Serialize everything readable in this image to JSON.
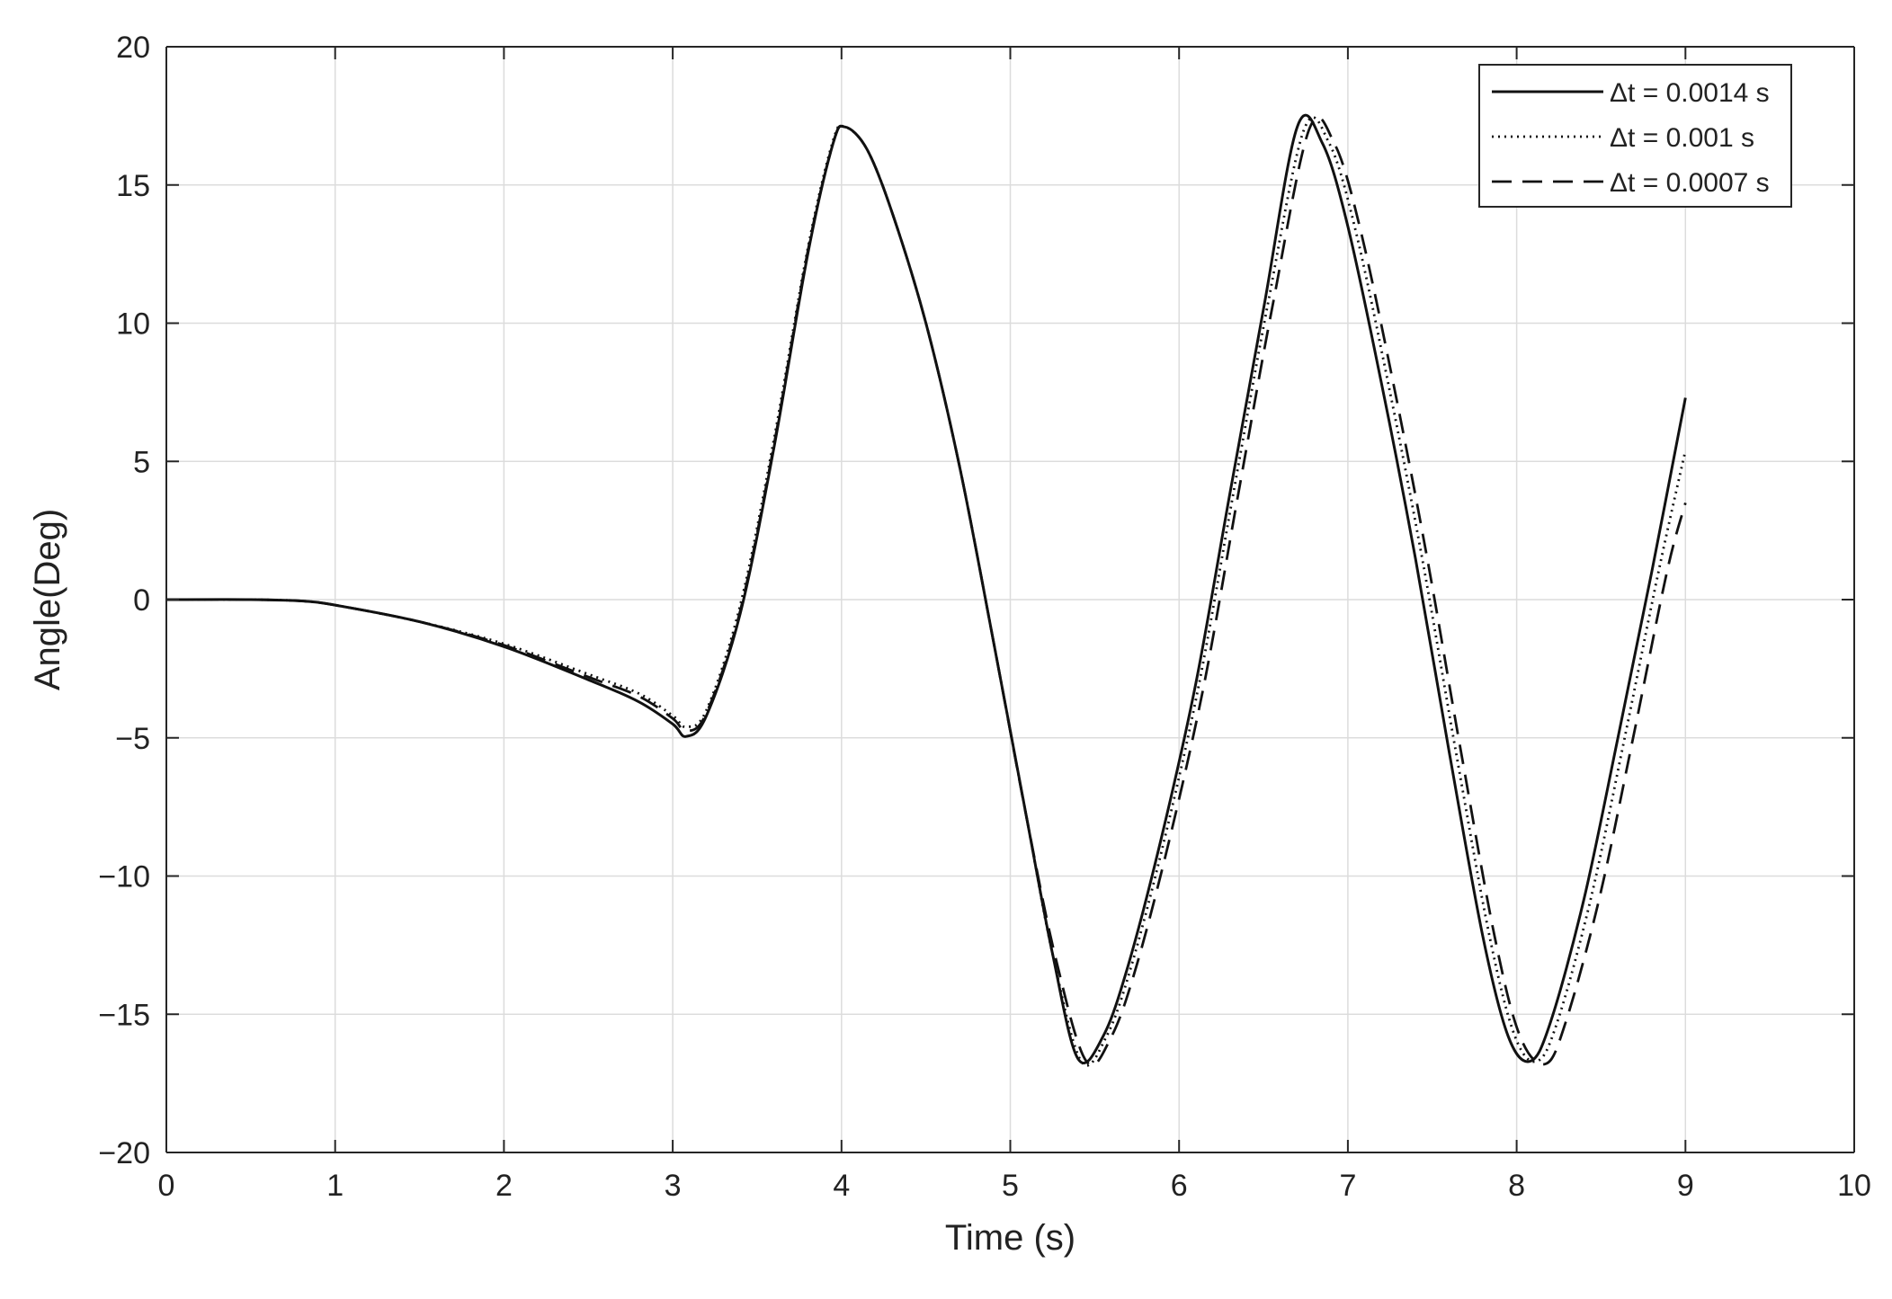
{
  "chart_data": {
    "type": "line",
    "title": "",
    "xlabel": "Time (s)",
    "ylabel": "Angle(Deg)",
    "xlim": [
      0,
      10
    ],
    "ylim": [
      -20,
      20
    ],
    "xticks": [
      0,
      1,
      2,
      3,
      4,
      5,
      6,
      7,
      8,
      9,
      10
    ],
    "yticks": [
      -20,
      -15,
      -10,
      -5,
      0,
      5,
      10,
      15,
      20
    ],
    "xtick_labels": [
      "0",
      "1",
      "2",
      "3",
      "4",
      "5",
      "6",
      "7",
      "8",
      "9",
      "10"
    ],
    "ytick_labels": [
      "−20",
      "−15",
      "−10",
      "−5",
      "0",
      "5",
      "10",
      "15",
      "20"
    ],
    "grid": true,
    "legend_position": "top-right",
    "colors": {
      "line": "#111111",
      "grid": "#dcdcdc",
      "axis": "#262626"
    },
    "series": [
      {
        "name": "Δt = 0.0014 s",
        "style": "solid",
        "x": [
          0,
          0.5,
          0.8,
          1.0,
          1.5,
          2.0,
          2.5,
          2.8,
          3.0,
          3.08,
          3.2,
          3.4,
          3.6,
          3.8,
          3.95,
          4.02,
          4.15,
          4.3,
          4.5,
          4.7,
          4.9,
          5.1,
          5.25,
          5.4,
          5.55,
          5.7,
          5.9,
          6.1,
          6.3,
          6.5,
          6.7,
          6.85,
          7.0,
          7.2,
          7.4,
          7.6,
          7.8,
          7.95,
          8.08,
          8.2,
          8.4,
          8.6,
          8.8,
          9.0
        ],
        "y": [
          0,
          0,
          -0.05,
          -0.2,
          -0.8,
          -1.7,
          -2.9,
          -3.7,
          -4.5,
          -4.95,
          -4.2,
          -0.5,
          5.5,
          12.5,
          16.5,
          17.1,
          16.3,
          14.0,
          10.0,
          4.8,
          -1.5,
          -8.0,
          -12.8,
          -16.6,
          -15.8,
          -13.2,
          -8.5,
          -3.0,
          3.8,
          10.5,
          17.1,
          16.5,
          13.5,
          7.8,
          1.5,
          -5.5,
          -12.2,
          -15.8,
          -16.7,
          -15.3,
          -10.8,
          -5.0,
          1.0,
          7.3
        ]
      },
      {
        "name": "Δt = 0.001 s",
        "style": "dotted",
        "x": [
          0,
          0.5,
          0.8,
          1.0,
          1.5,
          2.0,
          2.5,
          2.8,
          3.0,
          3.08,
          3.2,
          3.4,
          3.6,
          3.8,
          3.95,
          4.02,
          4.15,
          4.3,
          4.5,
          4.7,
          4.9,
          5.1,
          5.25,
          5.42,
          5.57,
          5.72,
          5.92,
          6.12,
          6.32,
          6.52,
          6.74,
          6.89,
          7.04,
          7.24,
          7.44,
          7.64,
          7.84,
          7.99,
          8.12,
          8.24,
          8.44,
          8.64,
          8.84,
          9.0
        ],
        "y": [
          0,
          0,
          -0.05,
          -0.2,
          -0.8,
          -1.6,
          -2.7,
          -3.4,
          -4.2,
          -4.6,
          -4.0,
          -0.2,
          5.8,
          12.7,
          16.6,
          17.1,
          16.3,
          14.0,
          10.0,
          4.8,
          -1.5,
          -8.0,
          -12.8,
          -16.7,
          -15.8,
          -13.2,
          -8.5,
          -3.0,
          3.8,
          10.5,
          17.0,
          16.5,
          13.5,
          7.8,
          1.5,
          -5.5,
          -12.2,
          -15.8,
          -16.7,
          -15.3,
          -10.8,
          -5.0,
          1.0,
          5.4
        ]
      },
      {
        "name": "Δt = 0.0007 s",
        "style": "dashed",
        "x": [
          0,
          0.5,
          0.8,
          1.0,
          1.5,
          2.0,
          2.5,
          2.8,
          3.0,
          3.08,
          3.2,
          3.4,
          3.6,
          3.8,
          3.95,
          4.02,
          4.15,
          4.3,
          4.5,
          4.7,
          4.9,
          5.1,
          5.27,
          5.45,
          5.6,
          5.75,
          5.95,
          6.15,
          6.35,
          6.55,
          6.77,
          6.92,
          7.07,
          7.27,
          7.47,
          7.67,
          7.87,
          8.02,
          8.17,
          8.29,
          8.49,
          8.69,
          8.89,
          9.0
        ],
        "y": [
          0,
          0,
          -0.05,
          -0.2,
          -0.8,
          -1.65,
          -2.8,
          -3.5,
          -4.3,
          -4.75,
          -4.1,
          -0.4,
          5.6,
          12.6,
          16.5,
          17.1,
          16.3,
          14.0,
          10.0,
          4.8,
          -1.5,
          -8.0,
          -13.0,
          -16.7,
          -15.8,
          -13.2,
          -8.5,
          -3.0,
          3.8,
          10.5,
          17.0,
          16.5,
          13.5,
          7.8,
          1.5,
          -5.5,
          -12.2,
          -15.8,
          -16.8,
          -15.3,
          -10.8,
          -5.0,
          1.0,
          3.5
        ]
      }
    ]
  }
}
